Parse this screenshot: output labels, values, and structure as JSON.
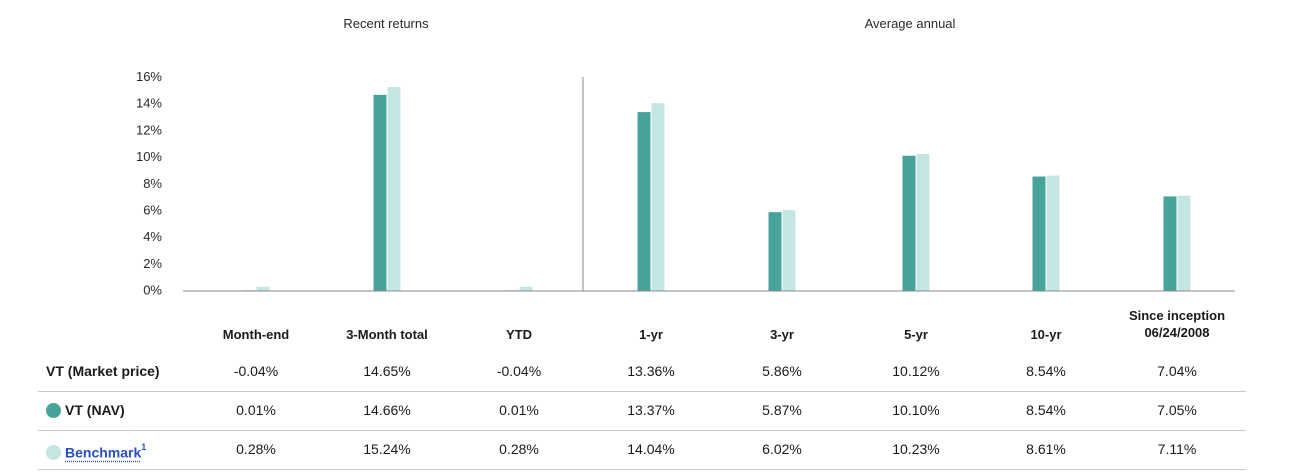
{
  "colors": {
    "nav": "#47a39a",
    "benchmark": "#c3e6e3",
    "axis": "#8a8a8a"
  },
  "chart_data": {
    "type": "bar",
    "title": "",
    "section_headers": [
      "Recent returns",
      "Average annual"
    ],
    "ylim": [
      0,
      16
    ],
    "y_ticks": [
      {
        "value": 0,
        "label": "0%"
      },
      {
        "value": 2,
        "label": "2%"
      },
      {
        "value": 4,
        "label": "4%"
      },
      {
        "value": 6,
        "label": "6%"
      },
      {
        "value": 8,
        "label": "8%"
      },
      {
        "value": 10,
        "label": "10%"
      },
      {
        "value": 12,
        "label": "12%"
      },
      {
        "value": 14,
        "label": "14%"
      },
      {
        "value": 16,
        "label": "16%"
      }
    ],
    "categories": [
      "Month-end",
      "3-Month total",
      "YTD",
      "1-yr",
      "3-yr",
      "5-yr",
      "10-yr",
      "Since inception 06/24/2008"
    ],
    "series": [
      {
        "name": "VT (NAV)",
        "color": "#47a39a",
        "values": [
          0.01,
          14.66,
          0.01,
          13.37,
          5.87,
          10.1,
          8.54,
          7.05
        ]
      },
      {
        "name": "Benchmark",
        "color": "#c3e6e3",
        "values": [
          0.28,
          15.24,
          0.28,
          14.04,
          6.02,
          10.23,
          8.61,
          7.11
        ]
      }
    ],
    "grid": false
  },
  "table": {
    "headers": [
      {
        "line1": "",
        "line2": "Month-end"
      },
      {
        "line1": "",
        "line2": "3-Month total"
      },
      {
        "line1": "",
        "line2": "YTD"
      },
      {
        "line1": "",
        "line2": "1-yr"
      },
      {
        "line1": "",
        "line2": "3-yr"
      },
      {
        "line1": "",
        "line2": "5-yr"
      },
      {
        "line1": "",
        "line2": "10-yr"
      },
      {
        "line1": "Since inception",
        "line2": "06/24/2008"
      }
    ],
    "rows": [
      {
        "label": "VT (Market price)",
        "values": [
          "-0.04%",
          "14.65%",
          "-0.04%",
          "13.36%",
          "5.86%",
          "10.12%",
          "8.54%",
          "7.04%"
        ]
      },
      {
        "label": "VT (NAV)",
        "values": [
          "0.01%",
          "14.66%",
          "0.01%",
          "13.37%",
          "5.87%",
          "10.10%",
          "8.54%",
          "7.05%"
        ]
      },
      {
        "label": "Benchmark",
        "footnote": "1",
        "values": [
          "0.28%",
          "15.24%",
          "0.28%",
          "14.04%",
          "6.02%",
          "10.23%",
          "8.61%",
          "7.11%"
        ]
      }
    ]
  }
}
